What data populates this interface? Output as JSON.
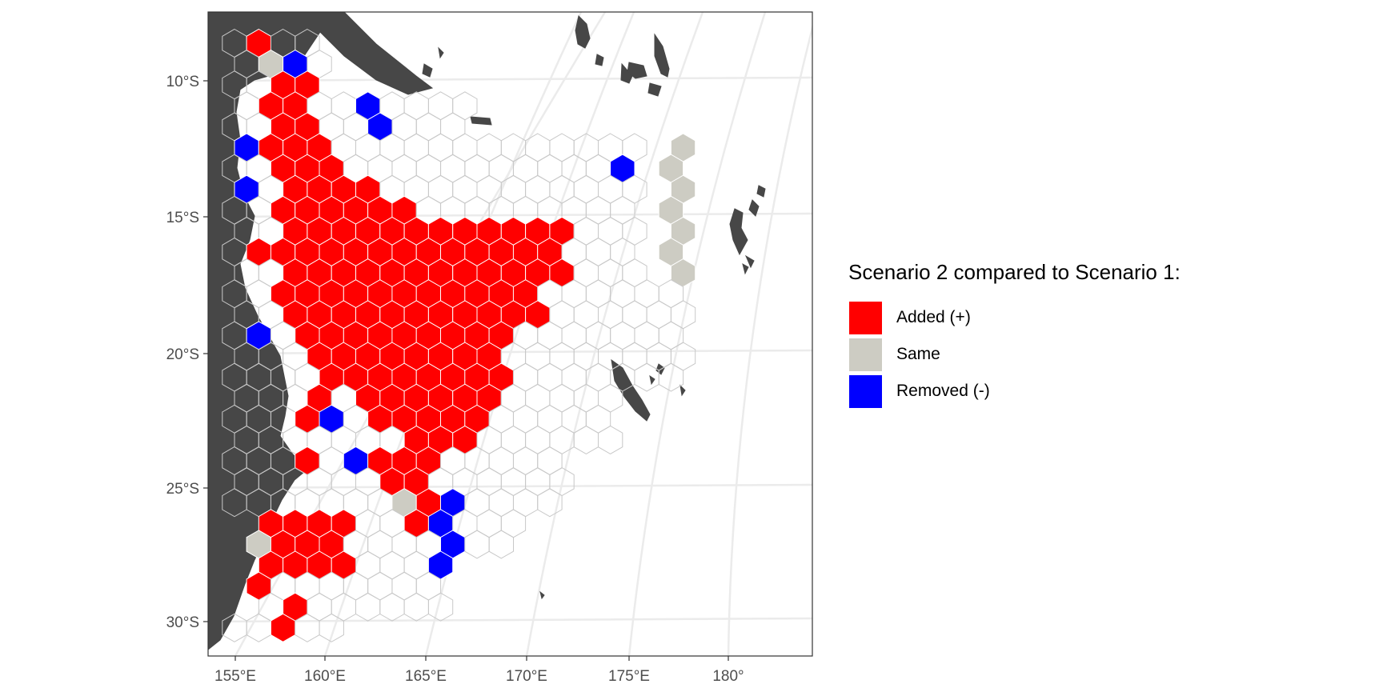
{
  "map": {
    "x_axis": {
      "ticks": [
        "155°E",
        "160°E",
        "165°E",
        "170°E",
        "175°E",
        "180°"
      ]
    },
    "y_axis": {
      "ticks": [
        "10°S",
        "15°S",
        "20°S",
        "25°S",
        "30°S"
      ]
    },
    "legend": {
      "title": "Scenario 2 compared to Scenario 1:",
      "items": [
        {
          "key": "added",
          "label": "Added (+)",
          "color": "#ff0000"
        },
        {
          "key": "same",
          "label": "Same",
          "color": "#cdccc3"
        },
        {
          "key": "removed",
          "label": "Removed (-)",
          "color": "#0000ff"
        }
      ]
    },
    "colors": {
      "land": "#474747",
      "grid_line": "#ebebeb",
      "empty_hex_stroke": "#c8c8c8",
      "panel_border": "#333333",
      "background": "#ffffff"
    }
  }
}
